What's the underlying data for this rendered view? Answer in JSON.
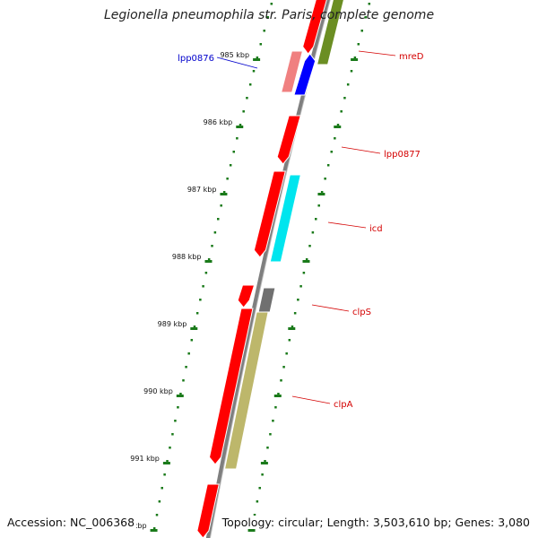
{
  "title": "Legionella pneumophila str. Paris, complete genome",
  "footer": {
    "accession_label": "Accession: ",
    "accession": "NC_006368",
    "topology_text": "Topology: circular; Length: 3,503,610 bp; Genes: 3,080"
  },
  "colors": {
    "backbone": "#7f7f7f",
    "tick_dots": "#1a7a1a",
    "label_red": "#d40000",
    "label_blue": "#0000cc"
  },
  "scale": {
    "unit": "kbp",
    "tick_labels": [
      "985 kbp",
      "986 kbp",
      "987 kbp",
      "988 kbp",
      "989 kbp",
      "990 kbp",
      "991 kbp",
      "992 kbp"
    ]
  },
  "features": [
    {
      "name": "",
      "color": "#ff0000",
      "strand": "forward"
    },
    {
      "name": "mreD",
      "color": "#6b8e23",
      "strand": "reverse"
    },
    {
      "name": "lpp0876",
      "color": "#f08080",
      "strand": "forward"
    },
    {
      "name": "",
      "color": "#0000ff",
      "strand": "forward"
    },
    {
      "name": "lpp0877",
      "color": "#ff0000",
      "strand": "forward"
    },
    {
      "name": "",
      "color": "#ff0000",
      "strand": "forward"
    },
    {
      "name": "icd",
      "color": "#00e5ee",
      "strand": "forward"
    },
    {
      "name": "",
      "color": "#ff0000",
      "strand": "forward"
    },
    {
      "name": "clpS",
      "color": "#707070",
      "strand": "forward"
    },
    {
      "name": "",
      "color": "#ff0000",
      "strand": "forward"
    },
    {
      "name": "clpA",
      "color": "#bdb76b",
      "strand": "forward"
    },
    {
      "name": "",
      "color": "#ff0000",
      "strand": "forward"
    }
  ]
}
